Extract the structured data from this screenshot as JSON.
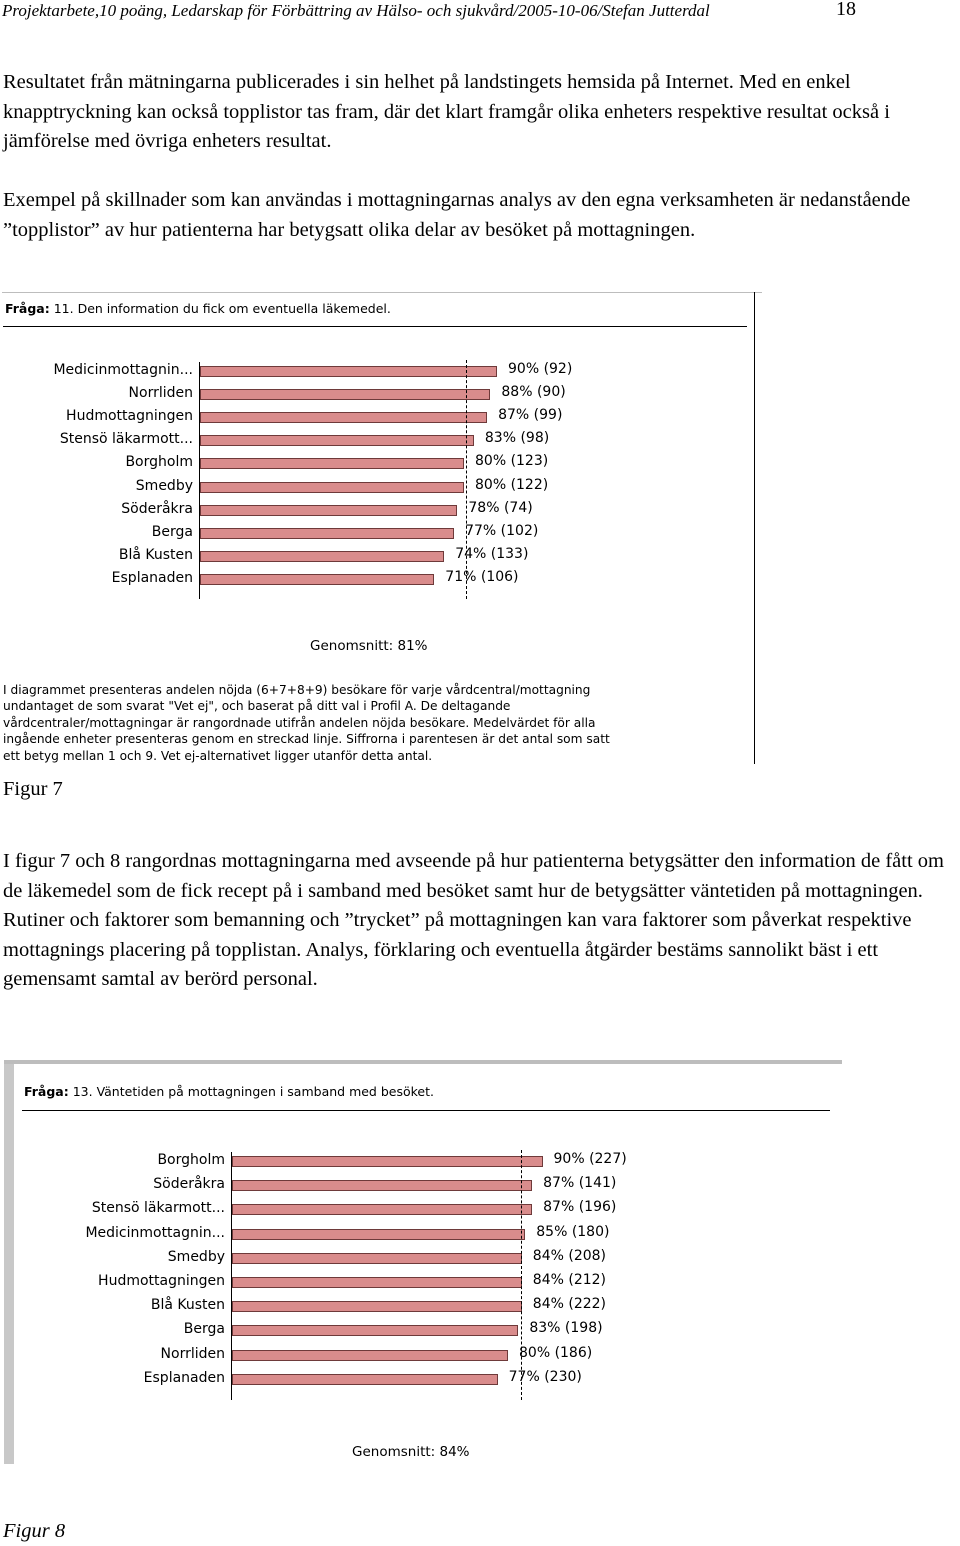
{
  "header": {
    "title": "Projektarbete,10 poäng, Ledarskap för Förbättring av Hälso- och sjukvård/2005-10-06/Stefan Jutterdal",
    "page_number": "18"
  },
  "paragraphs": {
    "p1": "Resultatet från mätningarna publicerades i sin helhet på landstingets hemsida på Internet. Med en enkel knapptryckning kan också topplistor tas fram, där det klart framgår olika enheters respektive resultat också i jämförelse med övriga enheters resultat.",
    "p2": "Exempel på skillnader som kan användas i mottagningarnas analys av den egna verksamheten är nedanstående ”topplistor” av hur patienterna har betygsatt olika delar av besöket på mottagningen.",
    "p3": "I figur 7 och 8 rangordnas mottagningarna med avseende på hur patienterna betygsätter den information de fått om de läkemedel som de fick recept på i samband med besöket samt hur de betygsätter väntetiden på mottagningen. Rutiner och faktorer som bemanning och ”trycket” på mottagningen kan vara faktorer som påverkat respektive mottagnings placering på topplistan. Analys, förklaring och eventuella åtgärder bestäms sannolikt bäst i ett gemensamt samtal av berörd personal."
  },
  "captions": {
    "fig7": "Figur 7",
    "fig8": "Figur 8"
  },
  "chart_data": [
    {
      "type": "bar",
      "orientation": "horizontal",
      "question_label": "Fråga:",
      "question_text": "11. Den information du fick om eventuella läkemedel.",
      "categories": [
        "Medicinmottagnin...",
        "Norrliden",
        "Hudmottagningen",
        "Stensö läkarmott...",
        "Borgholm",
        "Smedby",
        "Söderåkra",
        "Berga",
        "Blå Kusten",
        "Esplanaden"
      ],
      "values": [
        90,
        88,
        87,
        83,
        80,
        80,
        78,
        77,
        74,
        71
      ],
      "counts": [
        92,
        90,
        99,
        98,
        123,
        122,
        74,
        102,
        133,
        106
      ],
      "value_labels": [
        "90% (92)",
        "88% (90)",
        "87% (99)",
        "83% (98)",
        "80% (123)",
        "80% (122)",
        "78% (74)",
        "77% (102)",
        "74% (133)",
        "71% (106)"
      ],
      "average": 81,
      "average_label": "Genomsnitt: 81%",
      "bar_color": "#d98c8c",
      "description": "I diagrammet presenteras andelen nöjda (6+7+8+9) besökare för varje vårdcentral/mottagning\nundantaget de som svarat \"Vet ej\", och baserat på ditt val i Profil A. De deltagande\nvårdcentraler/mottagningar är rangordnade utifrån andelen nöjda besökare. Medelvärdet för alla\ningående enheter presenteras genom en streckad linje. Siffrorna i parentesen är det antal som satt\nett betyg mellan 1 och 9. Vet ej-alternativet ligger utanför detta antal."
    },
    {
      "type": "bar",
      "orientation": "horizontal",
      "question_label": "Fråga:",
      "question_text": "13. Väntetiden på mottagningen i samband med besöket.",
      "categories": [
        "Borgholm",
        "Söderåkra",
        "Stensö läkarmott...",
        "Medicinmottagnin...",
        "Smedby",
        "Hudmottagningen",
        "Blå Kusten",
        "Berga",
        "Norrliden",
        "Esplanaden"
      ],
      "values": [
        90,
        87,
        87,
        85,
        84,
        84,
        84,
        83,
        80,
        77
      ],
      "counts": [
        227,
        141,
        196,
        180,
        208,
        212,
        222,
        198,
        186,
        230
      ],
      "value_labels": [
        "90% (227)",
        "87% (141)",
        "87% (196)",
        "85% (180)",
        "84% (208)",
        "84% (212)",
        "84% (222)",
        "83% (198)",
        "80% (186)",
        "77% (230)"
      ],
      "average": 84,
      "average_label": "Genomsnitt: 84%",
      "bar_color": "#d98c8c"
    }
  ]
}
